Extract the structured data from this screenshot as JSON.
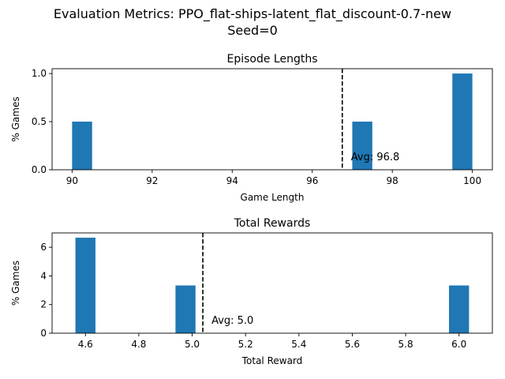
{
  "figure": {
    "suptitle_line1": "Evaluation Metrics: PPO_flat-ships-latent_flat_discount-0.7-new",
    "suptitle_line2": "Seed=0"
  },
  "chart_data": [
    {
      "type": "bar",
      "title": "Episode Lengths",
      "xlabel": "Game Length",
      "ylabel": "% Games",
      "xlim": [
        89.5,
        100.5
      ],
      "ylim": [
        0,
        1.05
      ],
      "xticks": [
        "90",
        "92",
        "94",
        "96",
        "98",
        "100"
      ],
      "yticks": [
        "0.0",
        "0.5",
        "1.0"
      ],
      "bar_width": 0.5,
      "bars": [
        {
          "x": 90.25,
          "value": 0.5
        },
        {
          "x": 97.25,
          "value": 0.5
        },
        {
          "x": 99.75,
          "value": 1.0
        }
      ],
      "avg_line": {
        "x": 96.75,
        "label": "Avg: 96.8"
      },
      "bar_color": "#1f77b4",
      "grid": false
    },
    {
      "type": "bar",
      "title": "Total Rewards",
      "xlabel": "Total Reward",
      "ylabel": "% Games",
      "xlim": [
        4.475,
        6.125
      ],
      "ylim": [
        0,
        7.0
      ],
      "xticks": [
        "4.6",
        "4.8",
        "5.0",
        "5.2",
        "5.4",
        "5.6",
        "5.8",
        "6.0"
      ],
      "yticks": [
        "0",
        "2",
        "4",
        "6"
      ],
      "bar_width": 0.075,
      "bars": [
        {
          "x": 4.6,
          "value": 6.667
        },
        {
          "x": 4.975,
          "value": 3.333
        },
        {
          "x": 6.0,
          "value": 3.333
        }
      ],
      "avg_line": {
        "x": 5.04,
        "label": "Avg: 5.0"
      },
      "bar_color": "#1f77b4",
      "grid": false
    }
  ]
}
